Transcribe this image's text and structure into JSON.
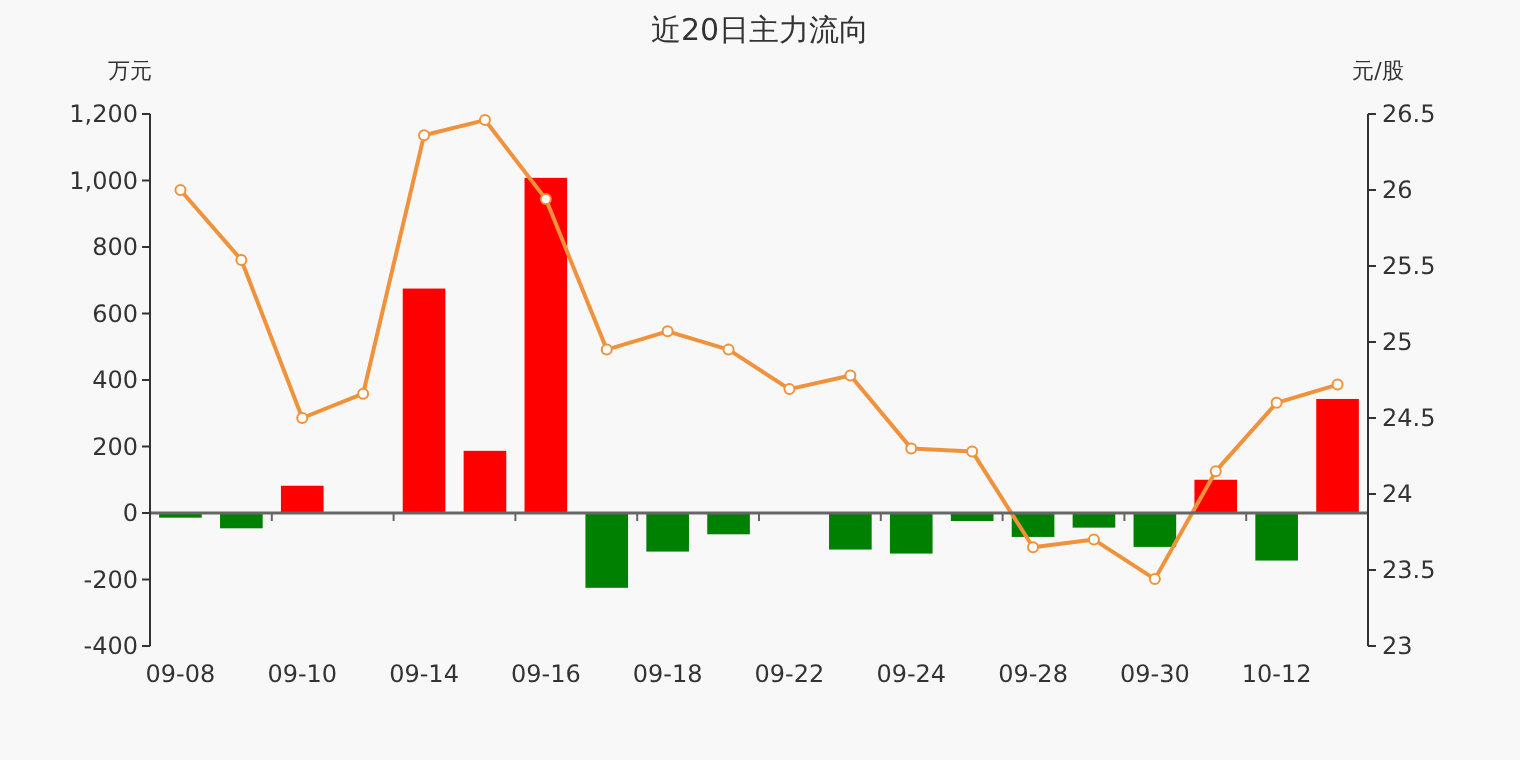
{
  "chart_data": {
    "type": "bar",
    "title": "近20日主力流向",
    "ylabel": "万元",
    "y2label": "元/股",
    "categories": [
      "09-08",
      null,
      "09-10",
      null,
      "09-14",
      null,
      "09-16",
      null,
      "09-18",
      null,
      "09-22",
      null,
      "09-24",
      null,
      "09-28",
      null,
      "09-30",
      null,
      "10-12",
      null
    ],
    "series": [
      {
        "values": [
          -14,
          -46,
          82,
          -2,
          675,
          187,
          1008,
          -225,
          -116,
          -64,
          0,
          -110,
          -122,
          -24,
          -72,
          -44,
          -102,
          100,
          -143,
          343
        ],
        "colors": [
          "#008000",
          "#008000",
          "#ff0000",
          "#008000",
          "#ff0000",
          "#ff0000",
          "#ff0000",
          "#008000",
          "#008000",
          "#008000",
          "#008000",
          "#008000",
          "#008000",
          "#008000",
          "#008000",
          "#008000",
          "#008000",
          "#ff0000",
          "#008000",
          "#ff0000"
        ]
      },
      {
        "type": "line",
        "axis": "y2",
        "color": "#f0923b",
        "marker": "circle",
        "values": [
          26.0,
          25.54,
          24.5,
          24.66,
          26.36,
          26.46,
          25.94,
          24.95,
          25.07,
          24.95,
          24.69,
          24.78,
          24.3,
          24.28,
          23.65,
          23.7,
          23.44,
          24.15,
          24.6,
          24.72
        ]
      }
    ],
    "ylim": [
      -400,
      1200
    ],
    "yticks": [
      -400,
      -200,
      0,
      200,
      400,
      600,
      800,
      {
        "value": 1000,
        "label": "1,000"
      },
      {
        "value": 1200,
        "label": "1,200"
      }
    ],
    "y2lim": [
      23,
      26.5
    ],
    "y2ticks": [
      23,
      23.5,
      24,
      24.5,
      25,
      25.5,
      26,
      26.5
    ]
  }
}
